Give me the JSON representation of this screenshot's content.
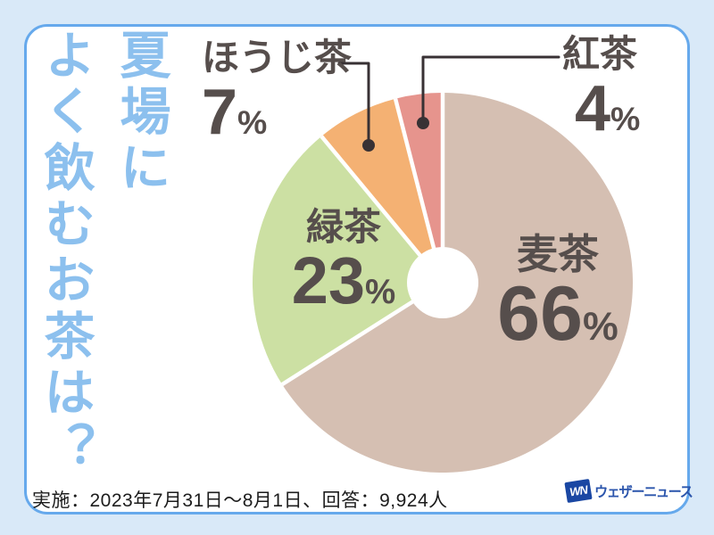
{
  "page": {
    "background_color": "#d9e9f8",
    "card_color": "#ffffff",
    "card_border_color": "#66a9ec"
  },
  "title": {
    "text": "夏場に\nよく飲むお茶は？",
    "color": "#8cc0ee"
  },
  "chart_data": {
    "type": "pie",
    "style": "donut",
    "start_angle_deg": 0,
    "direction": "clockwise",
    "unit": "%",
    "label_text_color": "#564e4c",
    "slices": [
      {
        "label": "麦茶",
        "value": 66,
        "color": "#d5bfb2"
      },
      {
        "label": "緑茶",
        "value": 23,
        "color": "#cce0a3"
      },
      {
        "label": "ほうじ茶",
        "value": 7,
        "color": "#f4b173"
      },
      {
        "label": "紅茶",
        "value": 4,
        "color": "#e6948d"
      }
    ]
  },
  "footer": {
    "survey_info": "実施：2023年7月31日～8月1日、回答：9,924人"
  },
  "logo": {
    "mark": "WN",
    "name": "ウェザーニュース",
    "mark_color": "#1a47a3",
    "name_color": "#2b55ac"
  }
}
